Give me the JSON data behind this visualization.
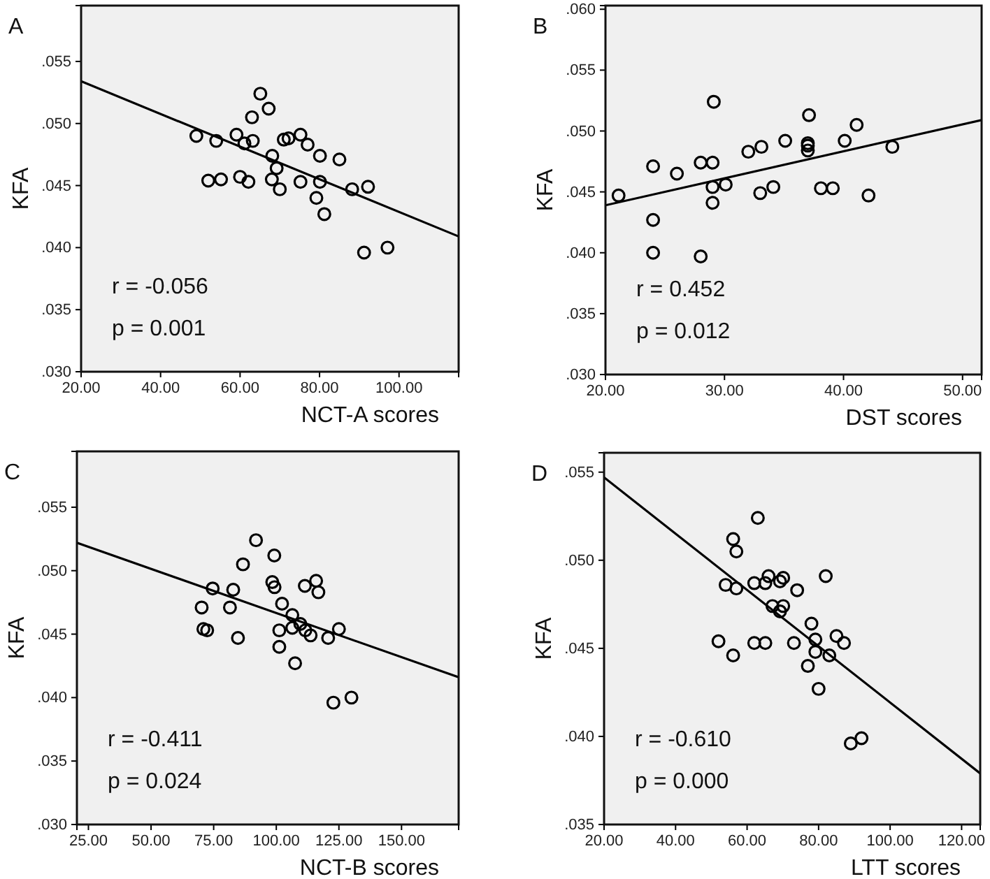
{
  "chart_data": [
    {
      "type": "scatter",
      "title": "A",
      "xlabel": "NCT-A scores",
      "ylabel": "KFA",
      "xlim": [
        20,
        115
      ],
      "xticks": [
        {
          "value": 20,
          "label": "20.00"
        },
        {
          "value": 40,
          "label": "40.00"
        },
        {
          "value": 60,
          "label": "60.00"
        },
        {
          "value": 80,
          "label": "80.00"
        },
        {
          "value": 100,
          "label": "100.00"
        }
      ],
      "ylim": [
        0.03,
        0.0595
      ],
      "yticks": [
        {
          "value": 0.03,
          "label": ".030"
        },
        {
          "value": 0.035,
          "label": ".035"
        },
        {
          "value": 0.04,
          "label": ".040"
        },
        {
          "value": 0.045,
          "label": ".045"
        },
        {
          "value": 0.05,
          "label": ".050"
        },
        {
          "value": 0.055,
          "label": ".055"
        }
      ],
      "annotations": [
        "r = -0.056",
        "p = 0.001"
      ],
      "series": [
        {
          "marker": "circle",
          "color": "#000000",
          "x": [
            49,
            54,
            52,
            55.2,
            59.1,
            61.1,
            63.2,
            63,
            65.1,
            67.2,
            60,
            62.1,
            68.1,
            69.2,
            68,
            70,
            71,
            72.2,
            75.2,
            77,
            75.2,
            80.1,
            80.1,
            79.2,
            81.2,
            85,
            88.2,
            92.2,
            91.2,
            97.1
          ],
          "values": [
            0.049,
            0.0486,
            0.0454,
            0.0455,
            0.0491,
            0.0484,
            0.0486,
            0.0505,
            0.0524,
            0.0512,
            0.0457,
            0.0453,
            0.0474,
            0.0464,
            0.0455,
            0.0447,
            0.0487,
            0.0488,
            0.0491,
            0.0483,
            0.0453,
            0.0474,
            0.0453,
            0.044,
            0.0427,
            0.0471,
            0.0447,
            0.0449,
            0.0396,
            0.04
          ]
        },
        {
          "type": "line",
          "color": "#000000",
          "x": [
            20,
            115
          ],
          "values": [
            0.0534,
            0.0409
          ]
        }
      ]
    },
    {
      "type": "scatter",
      "title": "B",
      "xlabel": "DST scores",
      "ylabel": "KFA",
      "xlim": [
        20,
        51.6
      ],
      "xticks": [
        {
          "value": 20,
          "label": "20.00"
        },
        {
          "value": 30,
          "label": "30.00"
        },
        {
          "value": 40,
          "label": "40.00"
        },
        {
          "value": 50,
          "label": "50.00"
        }
      ],
      "ylim": [
        0.03,
        0.0603
      ],
      "yticks": [
        {
          "value": 0.03,
          "label": ".030"
        },
        {
          "value": 0.035,
          "label": ".035"
        },
        {
          "value": 0.04,
          "label": ".040"
        },
        {
          "value": 0.045,
          "label": ".045"
        },
        {
          "value": 0.05,
          "label": ".050"
        },
        {
          "value": 0.055,
          "label": ".055"
        },
        {
          "value": 0.06,
          "label": ".060"
        }
      ],
      "annotations": [
        "r = 0.452",
        "p = 0.012"
      ],
      "series": [
        {
          "marker": "circle",
          "color": "#000000",
          "x": [
            21.1,
            24,
            24,
            24,
            26,
            28,
            28,
            29.1,
            29,
            29,
            29,
            30.1,
            32,
            33.1,
            33,
            34.1,
            35.1,
            37.1,
            37,
            37,
            37,
            38.1,
            39.1,
            40.1,
            41.1,
            42.1,
            44.1
          ],
          "values": [
            0.0447,
            0.0471,
            0.0427,
            0.04,
            0.0465,
            0.0474,
            0.0397,
            0.0524,
            0.0474,
            0.0454,
            0.0441,
            0.0456,
            0.0483,
            0.0487,
            0.0449,
            0.0454,
            0.0492,
            0.0513,
            0.049,
            0.0488,
            0.0484,
            0.0453,
            0.0453,
            0.0492,
            0.0505,
            0.0447,
            0.0487
          ]
        },
        {
          "type": "line",
          "color": "#000000",
          "x": [
            20,
            51.6
          ],
          "values": [
            0.0439,
            0.0509
          ]
        }
      ]
    },
    {
      "type": "scatter",
      "title": "C",
      "xlabel": "NCT-B scores",
      "ylabel": "KFA",
      "xlim": [
        20.4,
        172.8
      ],
      "xticks": [
        {
          "value": 25,
          "label": "25.00"
        },
        {
          "value": 50,
          "label": "50.00"
        },
        {
          "value": 75,
          "label": "75.00"
        },
        {
          "value": 100,
          "label": "100.00"
        },
        {
          "value": 125,
          "label": "125.00"
        },
        {
          "value": 150,
          "label": "150.00"
        }
      ],
      "ylim": [
        0.03,
        0.0594
      ],
      "yticks": [
        {
          "value": 0.03,
          "label": ".030"
        },
        {
          "value": 0.035,
          "label": ".035"
        },
        {
          "value": 0.04,
          "label": ".040"
        },
        {
          "value": 0.045,
          "label": ".045"
        },
        {
          "value": 0.05,
          "label": ".050"
        },
        {
          "value": 0.055,
          "label": ".055"
        }
      ],
      "annotations": [
        "r = -0.411",
        "p = 0.024"
      ],
      "series": [
        {
          "marker": "circle",
          "color": "#000000",
          "x": [
            70.2,
            70.9,
            72.4,
            74.6,
            81.5,
            82.8,
            84.7,
            86.7,
            91.9,
            98.4,
            99.3,
            99.2,
            102.3,
            101.2,
            101.2,
            106.4,
            106.4,
            107.5,
            109.6,
            111.6,
            113.7,
            111.4,
            115.9,
            116.8,
            120.7,
            125,
            122.8,
            130
          ],
          "values": [
            0.0471,
            0.0454,
            0.0453,
            0.0486,
            0.0471,
            0.0485,
            0.0447,
            0.0505,
            0.0524,
            0.0491,
            0.0487,
            0.0512,
            0.0474,
            0.0453,
            0.044,
            0.0465,
            0.0455,
            0.0427,
            0.0458,
            0.0453,
            0.0449,
            0.0488,
            0.0492,
            0.0483,
            0.0447,
            0.0454,
            0.0396,
            0.04
          ]
        },
        {
          "type": "line",
          "color": "#000000",
          "x": [
            20.4,
            172.8
          ],
          "values": [
            0.0522,
            0.0416
          ]
        }
      ]
    },
    {
      "type": "scatter",
      "title": "D",
      "xlabel": "LTT scores",
      "ylabel": "KFA",
      "xlim": [
        20,
        125.2
      ],
      "xticks": [
        {
          "value": 20,
          "label": "20.00"
        },
        {
          "value": 40,
          "label": "40.00"
        },
        {
          "value": 60,
          "label": "60.00"
        },
        {
          "value": 80,
          "label": "80.00"
        },
        {
          "value": 100,
          "label": "100.00"
        },
        {
          "value": 120,
          "label": "120.00"
        }
      ],
      "ylim": [
        0.035,
        0.0561
      ],
      "yticks": [
        {
          "value": 0.035,
          "label": ".035"
        },
        {
          "value": 0.04,
          "label": ".040"
        },
        {
          "value": 0.045,
          "label": ".045"
        },
        {
          "value": 0.05,
          "label": ".050"
        },
        {
          "value": 0.055,
          "label": ".055"
        }
      ],
      "annotations": [
        "r = -0.610",
        "p = 0.000"
      ],
      "series": [
        {
          "marker": "circle",
          "color": "#000000",
          "x": [
            52,
            54,
            56.1,
            56.1,
            57,
            57,
            62,
            62,
            65.1,
            65.1,
            66,
            63,
            67.1,
            69.2,
            69.2,
            70.1,
            70.1,
            73.1,
            74,
            77,
            78,
            79.1,
            79.1,
            80,
            82,
            83,
            85,
            87.1,
            89,
            92
          ],
          "values": [
            0.0454,
            0.0486,
            0.0446,
            0.0512,
            0.0505,
            0.0484,
            0.0487,
            0.0453,
            0.0487,
            0.0453,
            0.0491,
            0.0524,
            0.0474,
            0.0471,
            0.0488,
            0.049,
            0.0474,
            0.0453,
            0.0483,
            0.044,
            0.0464,
            0.0455,
            0.0448,
            0.0427,
            0.0491,
            0.0446,
            0.0457,
            0.0453,
            0.0396,
            0.0399
          ]
        },
        {
          "type": "line",
          "color": "#000000",
          "x": [
            20,
            125.2
          ],
          "values": [
            0.0547,
            0.0379
          ]
        }
      ]
    }
  ]
}
